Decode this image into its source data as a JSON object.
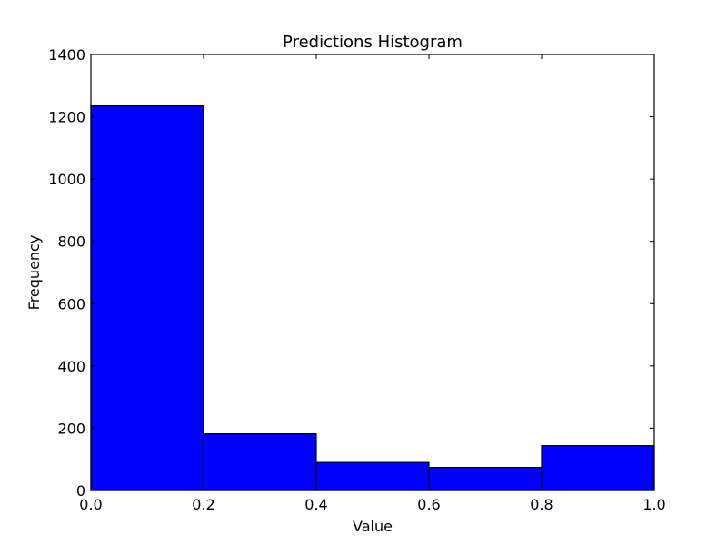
{
  "chart_data": {
    "type": "bar",
    "title": "Predictions Histogram",
    "xlabel": "Value",
    "ylabel": "Frequency",
    "xlim": [
      0.0,
      1.0
    ],
    "ylim": [
      0,
      1400
    ],
    "grid": false,
    "bins": [
      {
        "start": 0.0,
        "end": 0.2,
        "value": 1235
      },
      {
        "start": 0.2,
        "end": 0.4,
        "value": 182
      },
      {
        "start": 0.4,
        "end": 0.6,
        "value": 90
      },
      {
        "start": 0.6,
        "end": 0.8,
        "value": 74
      },
      {
        "start": 0.8,
        "end": 1.0,
        "value": 144
      }
    ],
    "x_ticks": [
      {
        "value": 0.0,
        "label": "0.0"
      },
      {
        "value": 0.2,
        "label": "0.2"
      },
      {
        "value": 0.4,
        "label": "0.4"
      },
      {
        "value": 0.6,
        "label": "0.6"
      },
      {
        "value": 0.8,
        "label": "0.8"
      },
      {
        "value": 1.0,
        "label": "1.0"
      }
    ],
    "y_ticks": [
      {
        "value": 0,
        "label": "0"
      },
      {
        "value": 200,
        "label": "200"
      },
      {
        "value": 400,
        "label": "400"
      },
      {
        "value": 600,
        "label": "600"
      },
      {
        "value": 800,
        "label": "800"
      },
      {
        "value": 1000,
        "label": "1000"
      },
      {
        "value": 1200,
        "label": "1200"
      },
      {
        "value": 1400,
        "label": "1400"
      }
    ],
    "colors": {
      "bar_fill": "#0000ff",
      "bar_edge": "#000000",
      "axes": "#000000"
    }
  }
}
